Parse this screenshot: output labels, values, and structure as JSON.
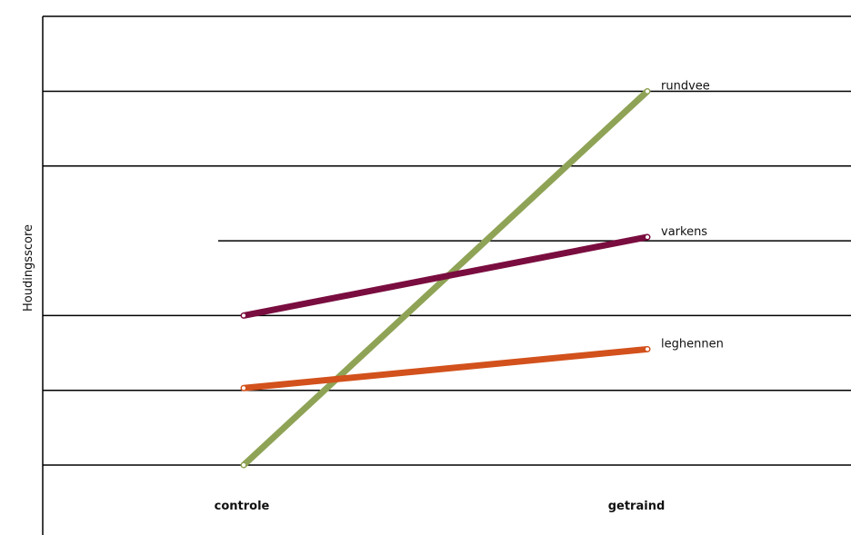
{
  "chart_data": {
    "type": "line",
    "title": "",
    "xlabel": "",
    "ylabel": "Houdingsscore",
    "categories": [
      "controle",
      "getraind"
    ],
    "ylim": [
      0,
      6
    ],
    "grid": true,
    "legend": "inline labels at line ends",
    "series": [
      {
        "name": "rundvee",
        "values": [
          0.0,
          5.0
        ],
        "color": "#8fa356"
      },
      {
        "name": "varkens",
        "values": [
          2.0,
          3.05
        ],
        "color": "#7a0d3f"
      },
      {
        "name": "leghennen",
        "values": [
          1.03,
          1.55
        ],
        "color": "#d2511c"
      }
    ]
  }
}
